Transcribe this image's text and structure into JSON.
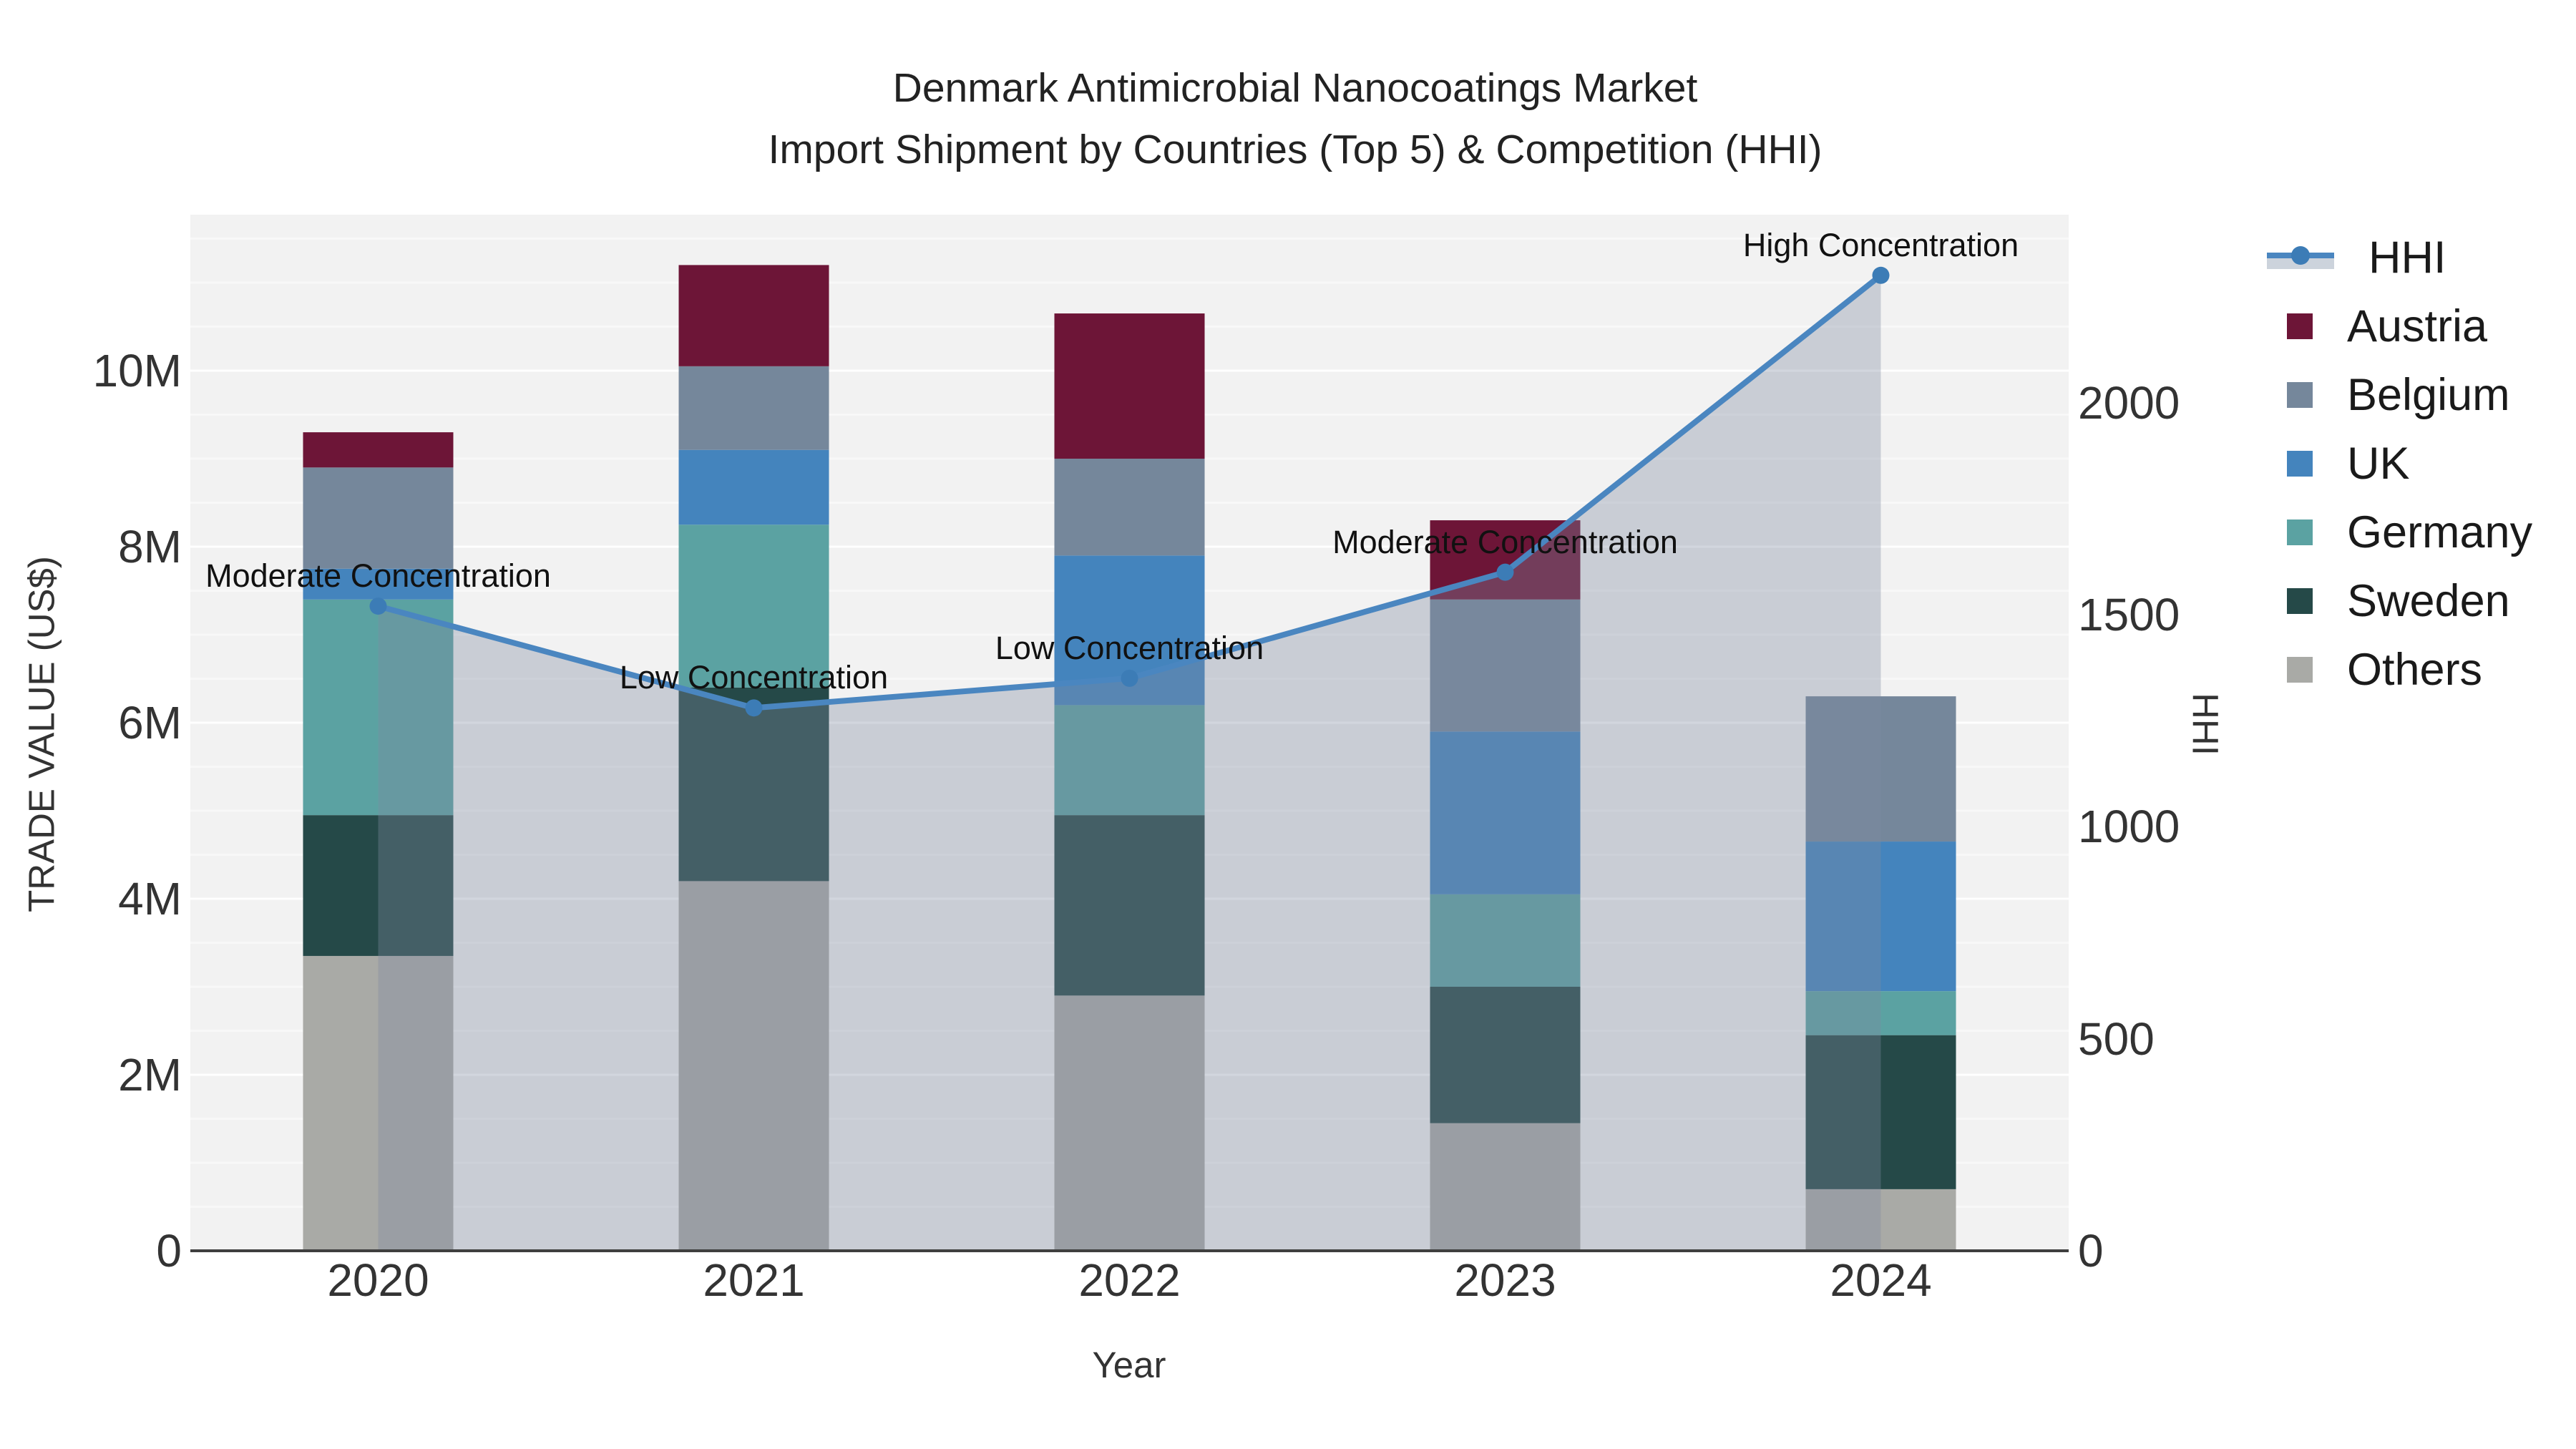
{
  "title": {
    "line1": "Denmark Antimicrobial Nanocoatings Market",
    "line2": "Import Shipment by Countries (Top 5) & Competition (HHI)"
  },
  "colors": {
    "austria": "#6d1537",
    "belgium": "#75879b",
    "uk": "#4484bd",
    "germany": "#5ba2a2",
    "sweden": "#254948",
    "others": "#a9aaa6",
    "hhi_line": "#4a86c0",
    "hhi_marker": "#3c7cb6",
    "area_fill": "rgba(125,138,160,0.35)",
    "plot_bg": "#f2f2f2",
    "grid": "#ffffff",
    "axis_line": "#3f3f3f"
  },
  "legend": {
    "items": [
      {
        "label": "HHI",
        "kind": "line",
        "color": "#4a86c0"
      },
      {
        "label": "Austria",
        "kind": "square",
        "color": "#6d1537"
      },
      {
        "label": "Belgium",
        "kind": "square",
        "color": "#75879b"
      },
      {
        "label": "UK",
        "kind": "square",
        "color": "#4484bd"
      },
      {
        "label": "Germany",
        "kind": "square",
        "color": "#5ba2a2"
      },
      {
        "label": "Sweden",
        "kind": "square",
        "color": "#254948"
      },
      {
        "label": "Others",
        "kind": "square",
        "color": "#a9aaa6"
      }
    ]
  },
  "axes": {
    "left": {
      "title": "TRADE VALUE (US$)",
      "ticks": [
        {
          "label": "0",
          "value": 0
        },
        {
          "label": "2M",
          "value": 2
        },
        {
          "label": "4M",
          "value": 4
        },
        {
          "label": "6M",
          "value": 6
        },
        {
          "label": "8M",
          "value": 8
        },
        {
          "label": "10M",
          "value": 10
        }
      ]
    },
    "right": {
      "title": "HHI",
      "ticks": [
        {
          "label": "0",
          "value": 0
        },
        {
          "label": "500",
          "value": 500
        },
        {
          "label": "1000",
          "value": 1000
        },
        {
          "label": "1500",
          "value": 1500
        },
        {
          "label": "2000",
          "value": 2000
        }
      ]
    },
    "x": {
      "title": "Year"
    }
  },
  "chart_data": {
    "type": "stacked-bar + line",
    "categories": [
      "2020",
      "2021",
      "2022",
      "2023",
      "2024"
    ],
    "bar_value_unit": "million US$",
    "series": [
      {
        "name": "Others",
        "color_key": "others",
        "values": [
          3.35,
          4.2,
          2.9,
          1.45,
          0.7
        ]
      },
      {
        "name": "Sweden",
        "color_key": "sweden",
        "values": [
          1.6,
          2.2,
          2.05,
          1.55,
          1.75
        ]
      },
      {
        "name": "Germany",
        "color_key": "germany",
        "values": [
          2.45,
          1.85,
          1.25,
          1.05,
          0.5
        ]
      },
      {
        "name": "UK",
        "color_key": "uk",
        "values": [
          0.35,
          0.85,
          1.7,
          1.85,
          1.7
        ]
      },
      {
        "name": "Belgium",
        "color_key": "belgium",
        "values": [
          1.15,
          0.95,
          1.1,
          1.5,
          1.65
        ]
      },
      {
        "name": "Austria",
        "color_key": "austria",
        "values": [
          0.4,
          1.15,
          1.65,
          0.9,
          0.0
        ]
      }
    ],
    "bar_totals": [
      9.3,
      11.2,
      10.65,
      8.3,
      6.3
    ],
    "line_series": {
      "name": "HHI",
      "axis": "right",
      "values": [
        1520,
        1280,
        1350,
        1600,
        2300
      ],
      "area_fill": true
    },
    "annotations": [
      {
        "text": "Moderate Concentration",
        "category_index": 0
      },
      {
        "text": "Low Concentration",
        "category_index": 1
      },
      {
        "text": "Low Concentration",
        "category_index": 2
      },
      {
        "text": "Moderate Concentration",
        "category_index": 3
      },
      {
        "text": "High Concentration",
        "category_index": 4
      }
    ],
    "left_axis_range": [
      0,
      11.77
    ],
    "right_axis_range": [
      0,
      2443
    ],
    "grid": true,
    "legend_position": "right"
  }
}
